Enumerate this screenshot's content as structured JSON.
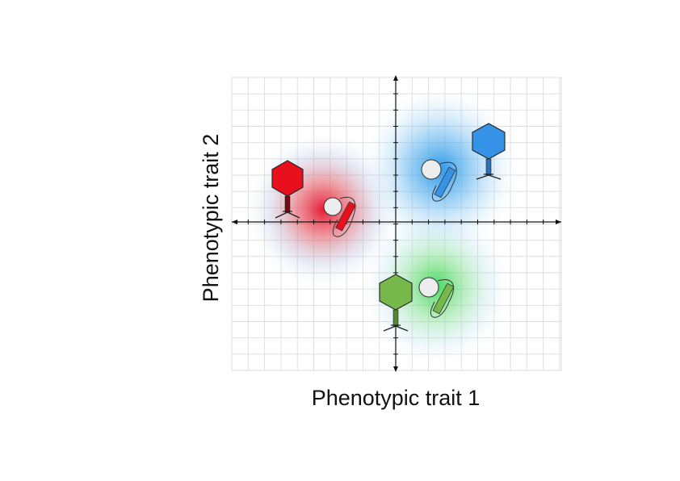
{
  "axes": {
    "x_label": "Phenotypic trait 1",
    "y_label": "Phenotypic trait 2"
  },
  "colors": {
    "red": "#e8101c",
    "blue": "#3592e6",
    "green": "#76b84a",
    "red_glow": "#e23a4a",
    "blue_glow": "#2f9fe8",
    "green_glow": "#3fd65a",
    "grid": "#dcdcdc",
    "axis": "#111111",
    "cell": "#eeeeee"
  },
  "icons": {
    "phage": "bacteriophage-icon",
    "host": "bacterium-with-plasmid-icon"
  },
  "groups": [
    {
      "name": "red-group",
      "color_key": "red"
    },
    {
      "name": "blue-group",
      "color_key": "blue"
    },
    {
      "name": "green-group",
      "color_key": "green"
    }
  ]
}
